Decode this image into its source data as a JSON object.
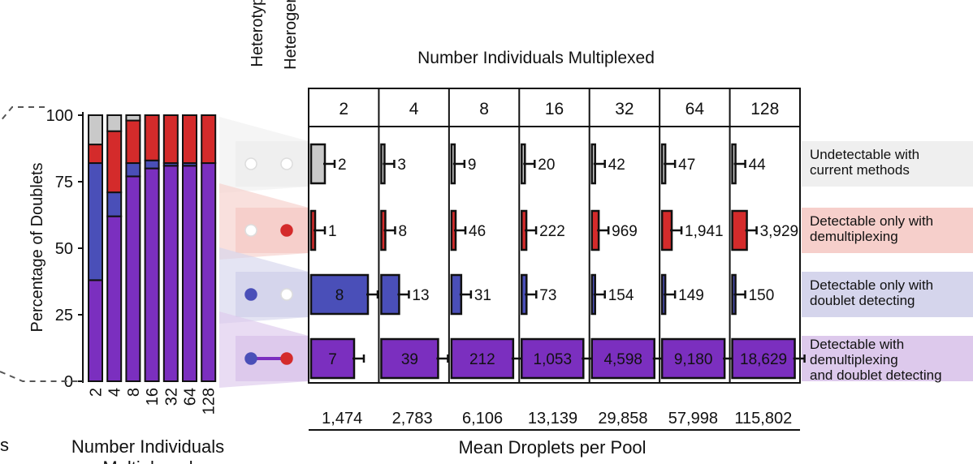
{
  "chart_data": [
    {
      "type": "bar",
      "stacked": true,
      "title": "",
      "ylabel": "Percentage of Doublets",
      "xlabel": "Number Individuals",
      "xlabel_line2": "Multiplexed",
      "ylim": [
        0,
        100
      ],
      "yticks": [
        "0",
        "25",
        "50",
        "75",
        "100"
      ],
      "categories": [
        "2",
        "4",
        "8",
        "16",
        "32",
        "64",
        "128"
      ],
      "series": [
        {
          "name": "Detectable with demultiplexing and doublet detecting",
          "color": "#7b2fbf",
          "values": [
            38,
            62,
            77,
            80,
            81,
            81,
            82
          ]
        },
        {
          "name": "Detectable only with doublet detecting",
          "color": "#4a4fb8",
          "values": [
            44,
            9,
            5,
            3,
            1,
            1,
            0
          ]
        },
        {
          "name": "Detectable only with demultiplexing",
          "color": "#d42b2b",
          "values": [
            7,
            23,
            16,
            17,
            18,
            18,
            18
          ]
        },
        {
          "name": "Undetectable with current methods",
          "color": "#c9c9c9",
          "values": [
            11,
            6,
            2,
            0,
            0,
            0,
            0
          ]
        }
      ]
    },
    {
      "type": "table",
      "title": "Number Individuals Multiplexed",
      "xlabel": "Mean Droplets per Pool",
      "row_header_labels": [
        "Heterotypic",
        "Heterogenic"
      ],
      "columns": [
        "2",
        "4",
        "8",
        "16",
        "32",
        "64",
        "128"
      ],
      "droplets": [
        "1,474",
        "2,783",
        "6,106",
        "13,139",
        "29,858",
        "57,998",
        "115,802"
      ],
      "rows": [
        {
          "label": "Undetectable with current methods",
          "label_lines": [
            "Undetectable with",
            "current methods"
          ],
          "color": "#c9c9c9",
          "band": "#efefef",
          "heterotypic": "empty",
          "heterogenic": "empty",
          "values": [
            2,
            3,
            9,
            20,
            42,
            47,
            44
          ],
          "labels": [
            "2",
            "3",
            "9",
            "20",
            "42",
            "47",
            "44"
          ]
        },
        {
          "label": "Detectable only with demultiplexing",
          "label_lines": [
            "Detectable only with",
            "demultiplexing"
          ],
          "color": "#d42b2b",
          "band": "#f6cfcb",
          "heterotypic": "empty",
          "heterogenic": "filled",
          "values": [
            1,
            8,
            46,
            222,
            969,
            1941,
            3929
          ],
          "labels": [
            "1",
            "8",
            "46",
            "222",
            "969",
            "1,941",
            "3,929"
          ]
        },
        {
          "label": "Detectable only with doublet detecting",
          "label_lines": [
            "Detectable only with",
            "doublet detecting"
          ],
          "color": "#4a4fb8",
          "band": "#d5d5ec",
          "heterotypic": "filled",
          "heterogenic": "empty",
          "values": [
            8,
            13,
            31,
            73,
            154,
            149,
            150
          ],
          "labels": [
            "8",
            "13",
            "31",
            "73",
            "154",
            "149",
            "150"
          ]
        },
        {
          "label": "Detectable with demultiplexing and doublet detecting",
          "label_lines": [
            "Detectable with",
            "demultiplexing",
            "and doublet detecting"
          ],
          "color": "#7b2fbf",
          "band": "#ddc9ec",
          "heterotypic": "filled",
          "heterogenic": "filled",
          "values": [
            7,
            39,
            212,
            1053,
            4598,
            9180,
            18629
          ],
          "labels": [
            "7",
            "39",
            "212",
            "1,053",
            "4,598",
            "9,180",
            "18,629"
          ]
        }
      ]
    }
  ],
  "left_edge_text": "s"
}
